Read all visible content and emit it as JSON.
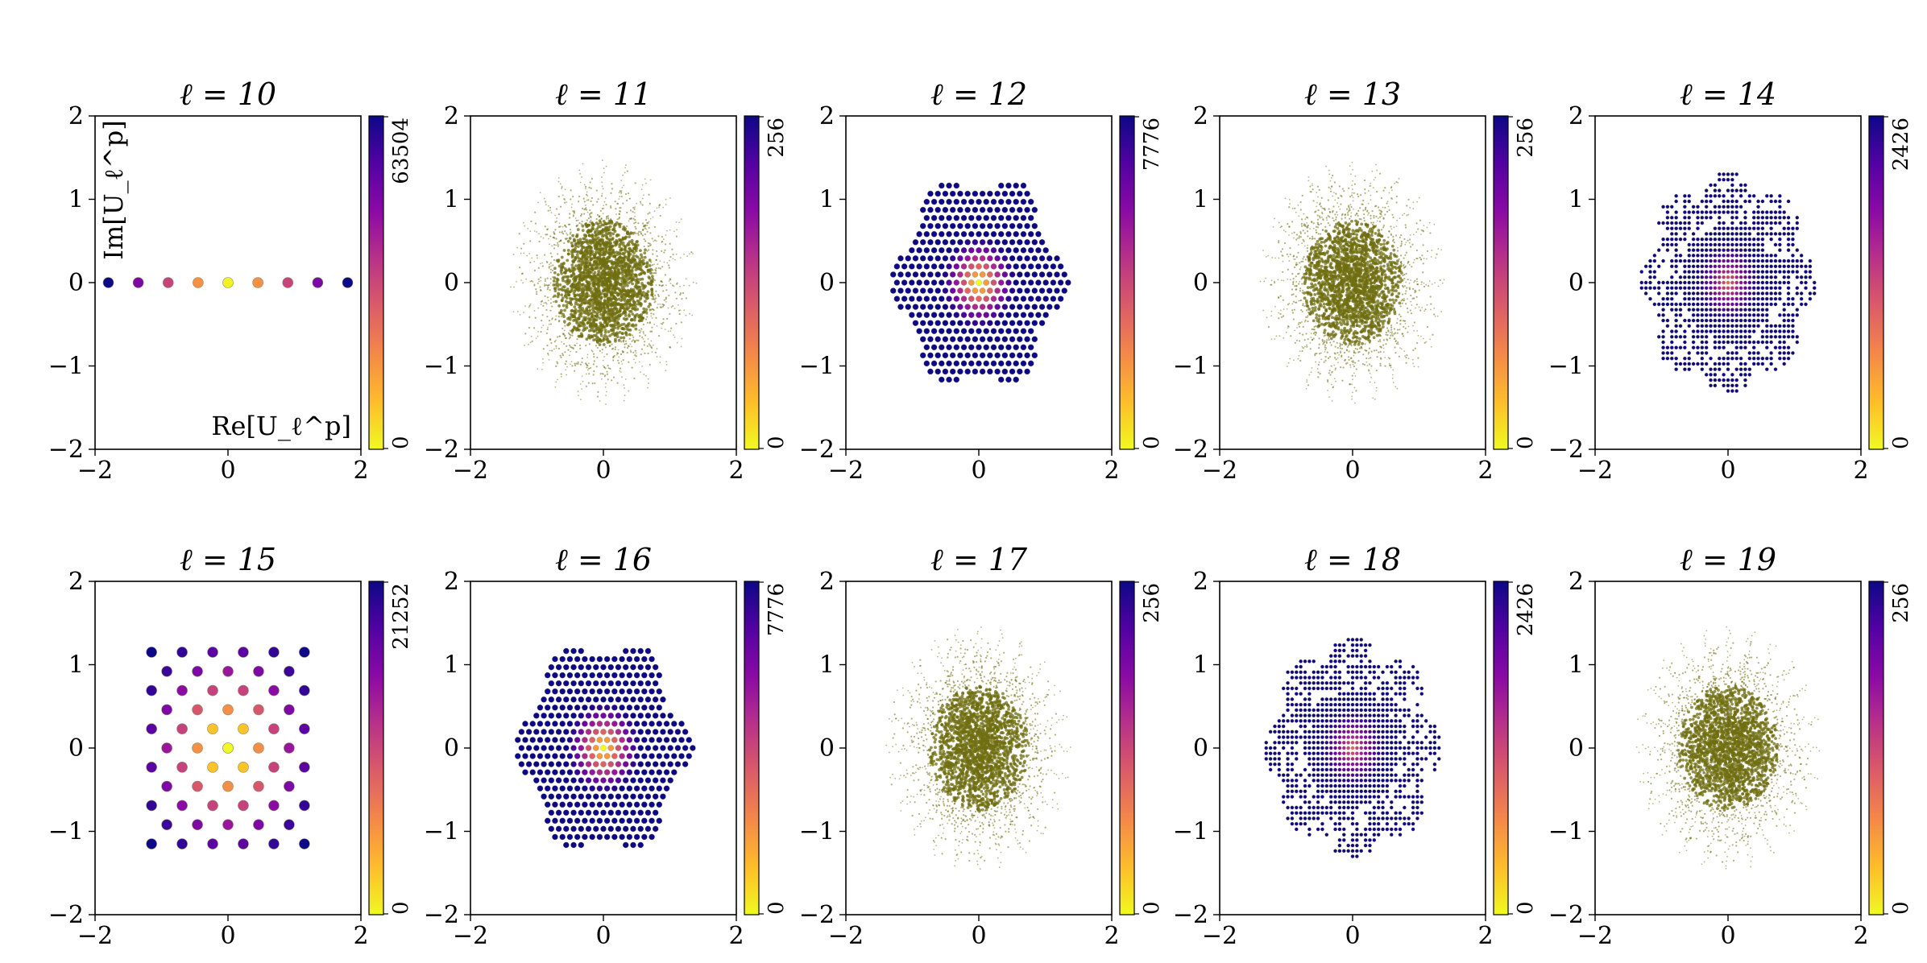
{
  "figure": {
    "colormap": [
      "#0d0887",
      "#5302a3",
      "#8b0aa5",
      "#b83289",
      "#db5c68",
      "#f48849",
      "#febd2a",
      "#f0f921"
    ],
    "dense_color": "#6f6d10",
    "marker_edge": "#8a8a6a",
    "axis_label_x": "Re[U_ℓ^p]",
    "axis_label_y": "Im[U_ℓ^p]"
  },
  "chart_data": [
    {
      "type": "scatter",
      "title": "ℓ = 10",
      "pattern": "line",
      "n": 9,
      "extent": 1.8,
      "cb_max": "63504",
      "cb_min": "0",
      "xlim": [
        -2,
        2
      ],
      "ylim": [
        -2,
        2
      ],
      "xticks": [
        "−2",
        "0",
        "2"
      ],
      "yticks": [
        "2",
        "1",
        "0",
        "−1",
        "−2"
      ],
      "xlabel": "Re[U_ℓ^p]",
      "ylabel": "Im[U_ℓ^p]"
    },
    {
      "type": "scatter",
      "title": "ℓ = 11",
      "pattern": "cloud",
      "extent": 1.4,
      "cb_max": "256",
      "cb_min": "0",
      "xlim": [
        -2,
        2
      ],
      "ylim": [
        -2,
        2
      ],
      "xticks": [
        "−2",
        "0",
        "2"
      ],
      "yticks": [
        "2",
        "1",
        "0",
        "−1",
        "−2"
      ]
    },
    {
      "type": "scatter",
      "title": "ℓ = 12",
      "pattern": "hex",
      "extent": 1.35,
      "cb_max": "7776",
      "cb_min": "0",
      "xlim": [
        -2,
        2
      ],
      "ylim": [
        -2,
        2
      ],
      "xticks": [
        "−2",
        "0",
        "2"
      ],
      "yticks": [
        "2",
        "1",
        "0",
        "−1",
        "−2"
      ]
    },
    {
      "type": "scatter",
      "title": "ℓ = 13",
      "pattern": "cloud",
      "extent": 1.4,
      "cb_max": "256",
      "cb_min": "0",
      "xlim": [
        -2,
        2
      ],
      "ylim": [
        -2,
        2
      ],
      "xticks": [
        "−2",
        "0",
        "2"
      ],
      "yticks": [
        "2",
        "1",
        "0",
        "−1",
        "−2"
      ]
    },
    {
      "type": "scatter",
      "title": "ℓ = 14",
      "pattern": "square-fine",
      "extent": 1.35,
      "cb_max": "2426",
      "cb_min": "0",
      "xlim": [
        -2,
        2
      ],
      "ylim": [
        -2,
        2
      ],
      "xticks": [
        "−2",
        "0",
        "2"
      ],
      "yticks": [
        "2",
        "1",
        "0",
        "−1",
        "−2"
      ]
    },
    {
      "type": "scatter",
      "title": "ℓ = 15",
      "pattern": "square",
      "n": 6,
      "extent": 1.15,
      "cb_max": "21252",
      "cb_min": "0",
      "xlim": [
        -2,
        2
      ],
      "ylim": [
        -2,
        2
      ],
      "xticks": [
        "−2",
        "0",
        "2"
      ],
      "yticks": [
        "2",
        "1",
        "0",
        "−1",
        "−2"
      ]
    },
    {
      "type": "scatter",
      "title": "ℓ = 16",
      "pattern": "hex",
      "extent": 1.35,
      "cb_max": "7776",
      "cb_min": "0",
      "xlim": [
        -2,
        2
      ],
      "ylim": [
        -2,
        2
      ],
      "xticks": [
        "−2",
        "0",
        "2"
      ],
      "yticks": [
        "2",
        "1",
        "0",
        "−1",
        "−2"
      ]
    },
    {
      "type": "scatter",
      "title": "ℓ = 17",
      "pattern": "cloud",
      "extent": 1.4,
      "cb_max": "256",
      "cb_min": "0",
      "xlim": [
        -2,
        2
      ],
      "ylim": [
        -2,
        2
      ],
      "xticks": [
        "−2",
        "0",
        "2"
      ],
      "yticks": [
        "2",
        "1",
        "0",
        "−1",
        "−2"
      ]
    },
    {
      "type": "scatter",
      "title": "ℓ = 18",
      "pattern": "square-fine",
      "extent": 1.35,
      "cb_max": "2426",
      "cb_min": "0",
      "xlim": [
        -2,
        2
      ],
      "ylim": [
        -2,
        2
      ],
      "xticks": [
        "−2",
        "0",
        "2"
      ],
      "yticks": [
        "2",
        "1",
        "0",
        "−1",
        "−2"
      ]
    },
    {
      "type": "scatter",
      "title": "ℓ = 19",
      "pattern": "cloud",
      "extent": 1.4,
      "cb_max": "256",
      "cb_min": "0",
      "xlim": [
        -2,
        2
      ],
      "ylim": [
        -2,
        2
      ],
      "xticks": [
        "−2",
        "0",
        "2"
      ],
      "yticks": [
        "2",
        "1",
        "0",
        "−1",
        "−2"
      ]
    }
  ]
}
